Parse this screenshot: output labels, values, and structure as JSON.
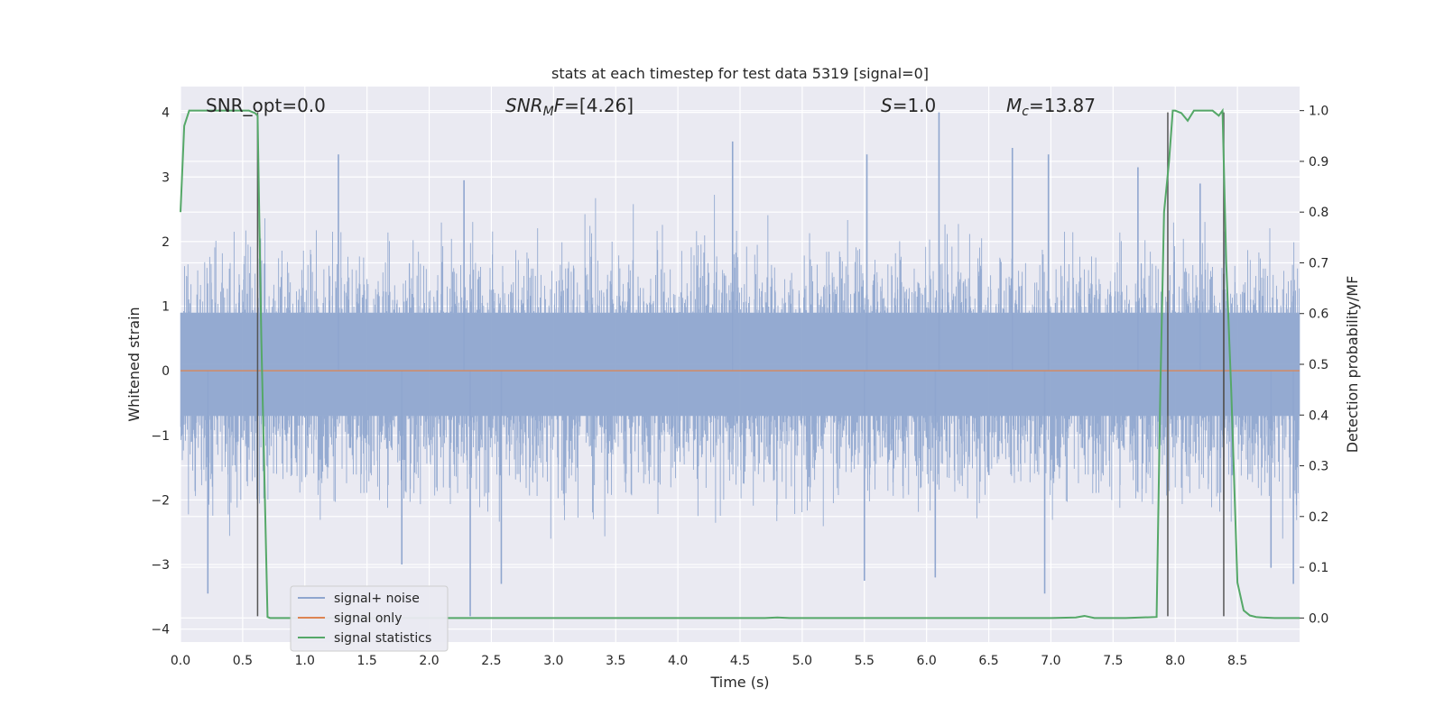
{
  "chart_data": {
    "type": "line",
    "title": "stats at each timestep for test data 5319 [signal=0]",
    "xlabel": "Time (s)",
    "ylabel": "Whitened strain",
    "ylabel_right": "Detection probability/MF",
    "xlim": [
      0,
      9
    ],
    "ylim": [
      -4.2,
      4.4
    ],
    "ylim_right": [
      -0.0474,
      1.0474
    ],
    "xticks": [
      "0.0",
      "0.5",
      "1.0",
      "1.5",
      "2.0",
      "2.5",
      "3.0",
      "3.5",
      "4.0",
      "4.5",
      "5.0",
      "5.5",
      "6.0",
      "6.5",
      "7.0",
      "7.5",
      "8.0",
      "8.5"
    ],
    "xtick_values": [
      0,
      0.5,
      1,
      1.5,
      2,
      2.5,
      3,
      3.5,
      4,
      4.5,
      5,
      5.5,
      6,
      6.5,
      7,
      7.5,
      8,
      8.5
    ],
    "yticks": [
      "4",
      "3",
      "2",
      "1",
      "0",
      "−1",
      "−2",
      "−3",
      "−4"
    ],
    "ytick_values": [
      4,
      3,
      2,
      1,
      0,
      -1,
      -2,
      -3,
      -4
    ],
    "yticks_right": [
      "1.0",
      "0.9",
      "0.8",
      "0.7",
      "0.6",
      "0.5",
      "0.4",
      "0.3",
      "0.2",
      "0.1",
      "0.0"
    ],
    "ytick_right_values": [
      1,
      0.9,
      0.8,
      0.7,
      0.6,
      0.5,
      0.4,
      0.3,
      0.2,
      0.1,
      0
    ],
    "grid": true,
    "legend_position": "lower-left",
    "legend": [
      "signal+ noise",
      "signal only",
      "signal statistics"
    ],
    "colors": {
      "noise": "#8fa6cf",
      "signal": "#dd8452",
      "stats": "#55a868",
      "markers": "#555555",
      "background": "#eaeaf2",
      "grid": "#ffffff"
    },
    "annotations": {
      "snr_opt": "SNR_opt=0.0",
      "snr_mf_sym": "SNR",
      "snr_mf_sub": "M",
      "snr_mf_rest": "F",
      "snr_mf_val": "=[4.26]",
      "s_sym": "S",
      "s_val": "=1.0",
      "mc_sym": "M",
      "mc_sub": "c",
      "mc_val": "=13.87"
    },
    "noise": {
      "envelope_peaks": [
        {
          "t": 1.27,
          "y": 3.35
        },
        {
          "t": 2.28,
          "y": 2.95
        },
        {
          "t": 4.44,
          "y": 3.55
        },
        {
          "t": 5.52,
          "y": 3.35
        },
        {
          "t": 6.1,
          "y": 4.0
        },
        {
          "t": 6.69,
          "y": 3.45
        },
        {
          "t": 6.98,
          "y": 3.35
        },
        {
          "t": 7.7,
          "y": 3.15
        },
        {
          "t": 8.2,
          "y": 2.9
        },
        {
          "t": 0.22,
          "y": -3.45
        },
        {
          "t": 1.78,
          "y": -3.0
        },
        {
          "t": 2.33,
          "y": -3.8
        },
        {
          "t": 2.58,
          "y": -3.3
        },
        {
          "t": 5.5,
          "y": -3.25
        },
        {
          "t": 6.07,
          "y": -3.2
        },
        {
          "t": 6.95,
          "y": -3.45
        },
        {
          "t": 8.95,
          "y": -3.3
        },
        {
          "t": 8.77,
          "y": -3.05
        }
      ],
      "band_std": 1.0
    },
    "signal_only": {
      "t": [
        0,
        9
      ],
      "y": [
        0,
        0
      ]
    },
    "signal_statistics": {
      "t": [
        0.0,
        0.03,
        0.07,
        0.12,
        0.2,
        0.3,
        0.4,
        0.5,
        0.55,
        0.6,
        0.62,
        0.65,
        0.7,
        0.72,
        0.8,
        1.0,
        2.0,
        3.0,
        4.0,
        4.7,
        4.8,
        4.9,
        5.0,
        6.0,
        7.0,
        7.2,
        7.27,
        7.35,
        7.6,
        7.85,
        7.88,
        7.91,
        7.95,
        7.98,
        8.0,
        8.05,
        8.1,
        8.15,
        8.2,
        8.3,
        8.35,
        8.38,
        8.41,
        8.45,
        8.5,
        8.55,
        8.6,
        8.65,
        8.7,
        8.8,
        9.0
      ],
      "p": [
        0.8,
        0.97,
        1.0,
        1.0,
        1.0,
        1.0,
        1.0,
        1.0,
        1.0,
        0.995,
        0.99,
        0.55,
        0.002,
        0.0,
        0.0,
        0.0,
        0.0,
        0.0,
        0.0,
        0.0,
        0.001,
        0.0,
        0.0,
        0.0,
        0.0,
        0.001,
        0.004,
        0.0,
        0.0,
        0.002,
        0.45,
        0.8,
        0.9,
        1.0,
        1.0,
        0.995,
        0.98,
        1.0,
        1.0,
        1.0,
        0.99,
        1.0,
        0.7,
        0.45,
        0.07,
        0.015,
        0.005,
        0.002,
        0.001,
        0.0,
        0.0
      ]
    },
    "markers": [
      {
        "t": 0.62,
        "y_from": -3.8,
        "y_to": 4.0
      },
      {
        "t": 7.94,
        "y_from": -3.8,
        "y_to": 4.0
      },
      {
        "t": 8.39,
        "y_from": -3.8,
        "y_to": 4.0
      },
      {
        "t": 8.39,
        "y_from": -2.0,
        "y_to": 1.5
      }
    ]
  }
}
